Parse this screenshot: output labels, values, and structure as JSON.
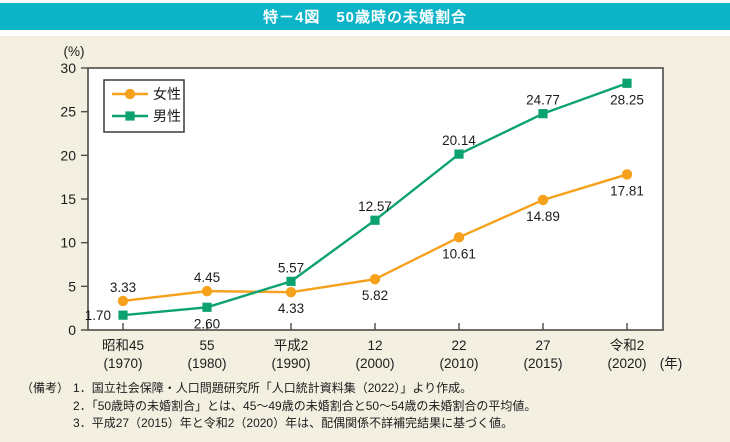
{
  "title": "特－4図　50歳時の未婚割合",
  "notes": {
    "label": "（備考）",
    "items": [
      "1．国立社会保障・人口問題研究所「人口統計資料集（2022）」より作成。",
      "2．「50歳時の未婚割合」とは、45～49歳の未婚割合と50～54歳の未婚割合の平均値。",
      "3．平成27（2015）年と令和2（2020）年は、配偶関係不詳補完結果に基づく値。"
    ]
  },
  "chart_data": {
    "type": "line",
    "title": "特－4図　50歳時の未婚割合",
    "unit_label": "(%)",
    "x_suffix": "(年)",
    "ylim": [
      0,
      30
    ],
    "yticks": [
      0,
      5,
      10,
      15,
      20,
      25,
      30
    ],
    "grid": false,
    "legend_position": "top-left-inside",
    "categories": [
      {
        "era": "昭和45",
        "year": "(1970)"
      },
      {
        "era": "55",
        "year": "(1980)"
      },
      {
        "era": "平成2",
        "year": "(1990)"
      },
      {
        "era": "12",
        "year": "(2000)"
      },
      {
        "era": "22",
        "year": "(2010)"
      },
      {
        "era": "27",
        "year": "(2015)"
      },
      {
        "era": "令和2",
        "year": "(2020)"
      }
    ],
    "series": [
      {
        "name": "女性",
        "color": "#F5A11C",
        "marker": "circle",
        "values": [
          3.33,
          4.45,
          4.33,
          5.82,
          10.61,
          14.89,
          17.81
        ],
        "label_pos": [
          "above",
          "above",
          "below",
          "below",
          "below",
          "below",
          "below"
        ]
      },
      {
        "name": "男性",
        "color": "#0CA26F",
        "marker": "square",
        "values": [
          1.7,
          2.6,
          5.57,
          12.57,
          20.14,
          24.77,
          28.25
        ],
        "label_pos": [
          "left",
          "below",
          "above",
          "above",
          "above",
          "above",
          "below"
        ]
      }
    ],
    "colors": {
      "axis": "#4D4B47",
      "label_text": "#1c1c1c",
      "plot_background": "#ffffff",
      "panel_background": "#F3EFE1",
      "title_bar": "#0DB4C8"
    }
  }
}
